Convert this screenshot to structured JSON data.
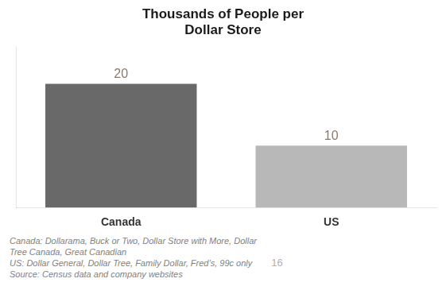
{
  "chart_data": {
    "type": "bar",
    "title": "Thousands of People per\nDollar Store",
    "categories": [
      "Canada",
      "US"
    ],
    "values": [
      20,
      10
    ],
    "colors": [
      "#696969",
      "#b8b8b8"
    ],
    "ylim": [
      0,
      26
    ],
    "tick_labels": "x",
    "grid": false,
    "data_labels": true,
    "annotations": [
      "Canada: Dollarama, Buck or Two, Dollar Store with More, Dollar",
      "Tree Canada, Great Canadian",
      "US: Dollar General, Dollar Tree, Family Dollar, Fred’s, 99c only",
      "Source: Census data and company websites",
      "16"
    ]
  }
}
